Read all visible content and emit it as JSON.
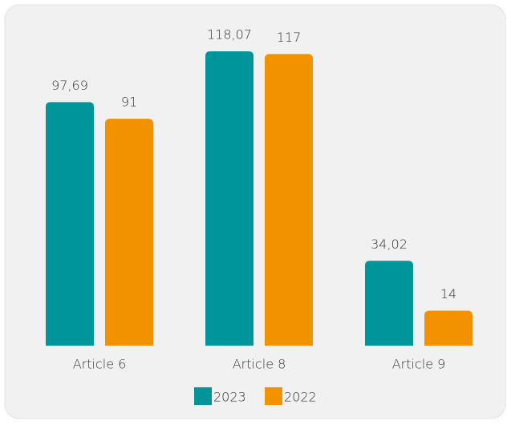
{
  "chart_data": {
    "type": "bar",
    "categories": [
      "Article 6",
      "Article 8",
      "Article 9"
    ],
    "series": [
      {
        "name": "2023",
        "color": "#00959a",
        "values": [
          97.69,
          118.07,
          34.02
        ],
        "value_labels": [
          "97,69",
          "118,07",
          "34,02"
        ]
      },
      {
        "name": "2022",
        "color": "#f39200",
        "values": [
          91,
          117,
          14
        ]
      }
    ]
  }
}
